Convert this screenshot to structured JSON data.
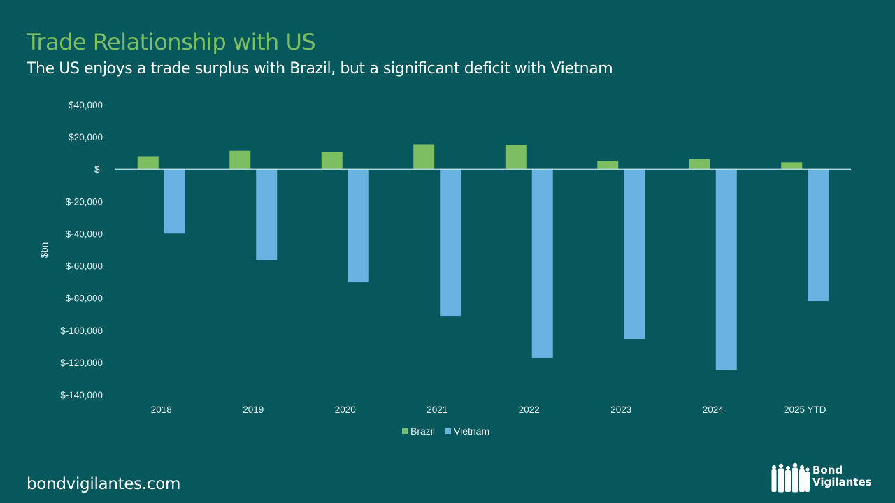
{
  "slide": {
    "title": "Trade Relationship with US",
    "subtitle": "The US enjoys a trade surplus with Brazil, but a significant deficit with Vietnam",
    "footer": "bondvigilantes.com",
    "logo": {
      "line1": "Bond",
      "line2": "Vigilantes"
    }
  },
  "colors": {
    "background": "#06585c",
    "title": "#7dbe62",
    "brazil": "#7dbe62",
    "vietnam": "#69b3e3",
    "axis": "#bfe6ea"
  },
  "chart_data": {
    "type": "bar",
    "title": "Trade Relationship with US",
    "ylabel": "$bn",
    "xlabel": "",
    "categories": [
      "2018",
      "2019",
      "2020",
      "2021",
      "2022",
      "2023",
      "2024",
      "2025 YTD"
    ],
    "series": [
      {
        "name": "Brazil",
        "values": [
          7700,
          11500,
          10700,
          15500,
          15000,
          5100,
          6400,
          4300
        ]
      },
      {
        "name": "Vietnam",
        "values": [
          -39900,
          -56300,
          -70200,
          -91500,
          -117000,
          -105300,
          -124400,
          -81900
        ]
      }
    ],
    "ylim": [
      -140000,
      40000
    ],
    "yticks": [
      40000,
      20000,
      0,
      -20000,
      -40000,
      -60000,
      -80000,
      -100000,
      -120000,
      -140000
    ],
    "ytick_labels": [
      "$40,000",
      "$20,000",
      "$-",
      "$-20,000",
      "$-40,000",
      "$-60,000",
      "$-80,000",
      "$-100,000",
      "$-120,000",
      "$-140,000"
    ],
    "legend": {
      "position": "bottom",
      "entries": [
        "Brazil",
        "Vietnam"
      ]
    },
    "grid": false
  }
}
